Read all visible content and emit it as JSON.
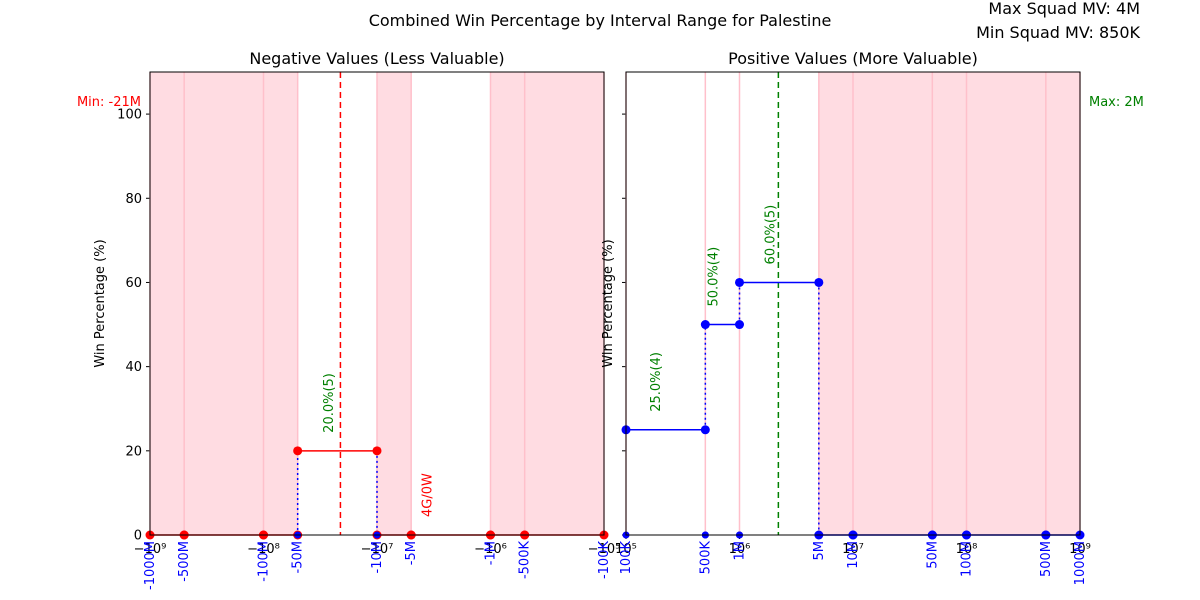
{
  "title": "Combined Win Percentage by Interval Range for Palestine",
  "info": {
    "max_squad_mv": "Max Squad MV: 4M",
    "min_squad_mv": "Min Squad MV: 850K"
  },
  "colors": {
    "negative": "#ff0000",
    "positive": "#0000ff",
    "annotation": "#008000",
    "shade": "#ffc0cb",
    "connector": "#0000ff"
  },
  "chart_data": [
    {
      "type": "line",
      "title": "Negative Values (Less Valuable)",
      "ylabel": "Win Percentage (%)",
      "x_scale": "symlog-negative",
      "xlim": [
        -1000000000,
        -100000
      ],
      "ylim": [
        0,
        110
      ],
      "yticks": [
        0,
        20,
        40,
        60,
        80,
        100
      ],
      "axis_ticks": [
        {
          "x": -1000000000,
          "label": "−10⁹"
        },
        {
          "x": -100000000,
          "label": "−10⁸"
        },
        {
          "x": -10000000,
          "label": "−10⁷"
        },
        {
          "x": -1000000,
          "label": "−10⁶"
        },
        {
          "x": -100000,
          "label": "−10⁵"
        }
      ],
      "interval_labels": [
        {
          "x": -1000000000,
          "label": "-1000M"
        },
        {
          "x": -500000000,
          "label": "-500M"
        },
        {
          "x": -100000000,
          "label": "-100M"
        },
        {
          "x": -50000000,
          "label": "-50M"
        },
        {
          "x": -10000000,
          "label": "-10M"
        },
        {
          "x": -5000000,
          "label": "-5M"
        },
        {
          "x": -1000000,
          "label": "-1M"
        },
        {
          "x": -500000,
          "label": "-500K"
        },
        {
          "x": -100000,
          "label": "-100K"
        }
      ],
      "shaded_ranges": [
        [
          -1000000000,
          -50000000
        ],
        [
          -10000000,
          -5000000
        ],
        [
          -1000000,
          -100000
        ]
      ],
      "marker_line": {
        "x": -21000000,
        "label": "Min: -21M",
        "color": "#ff0000"
      },
      "segments": [
        {
          "x_start": -1000000000,
          "x_end": -500000000,
          "y": 0
        },
        {
          "x_start": -500000000,
          "x_end": -100000000,
          "y": 0
        },
        {
          "x_start": -100000000,
          "x_end": -50000000,
          "y": 0
        },
        {
          "x_start": -50000000,
          "x_end": -10000000,
          "y": 20
        },
        {
          "x_start": -10000000,
          "x_end": -5000000,
          "y": 0
        },
        {
          "x_start": -5000000,
          "x_end": -1000000,
          "y": 0
        },
        {
          "x_start": -1000000,
          "x_end": -500000,
          "y": 0
        },
        {
          "x_start": -500000,
          "x_end": -100000,
          "y": 0
        }
      ],
      "annotations": [
        {
          "x": -22000000,
          "y": 20,
          "text": "20.0%(5)",
          "color": "#008000"
        },
        {
          "x": -3000000,
          "y": 0,
          "text": "4G/0W",
          "color": "#ff0000"
        }
      ]
    },
    {
      "type": "line",
      "title": "Positive Values (More Valuable)",
      "ylabel": "Win Percentage (%)",
      "x_scale": "log",
      "xlim": [
        100000,
        1000000000
      ],
      "ylim": [
        0,
        110
      ],
      "yticks": [
        0,
        20,
        40,
        60,
        80,
        100
      ],
      "axis_ticks": [
        {
          "x": 100000,
          "label": "10⁵"
        },
        {
          "x": 1000000,
          "label": "10⁶"
        },
        {
          "x": 10000000,
          "label": "10⁷"
        },
        {
          "x": 100000000,
          "label": "10⁸"
        },
        {
          "x": 1000000000,
          "label": "10⁹"
        }
      ],
      "interval_labels": [
        {
          "x": 100000,
          "label": "100K"
        },
        {
          "x": 500000,
          "label": "500K"
        },
        {
          "x": 1000000,
          "label": "1M"
        },
        {
          "x": 5000000,
          "label": "5M"
        },
        {
          "x": 10000000,
          "label": "10M"
        },
        {
          "x": 50000000,
          "label": "50M"
        },
        {
          "x": 100000000,
          "label": "100M"
        },
        {
          "x": 500000000,
          "label": "500M"
        },
        {
          "x": 1000000000,
          "label": "1000M"
        }
      ],
      "shaded_ranges": [
        [
          5000000,
          1000000000
        ]
      ],
      "marker_line": {
        "x": 2200000,
        "label": "Max: 2M",
        "color": "#008000"
      },
      "segments": [
        {
          "x_start": 100000,
          "x_end": 500000,
          "y": 25
        },
        {
          "x_start": 500000,
          "x_end": 1000000,
          "y": 50
        },
        {
          "x_start": 1000000,
          "x_end": 5000000,
          "y": 60
        },
        {
          "x_start": 5000000,
          "x_end": 10000000,
          "y": 0
        },
        {
          "x_start": 10000000,
          "x_end": 50000000,
          "y": 0
        },
        {
          "x_start": 50000000,
          "x_end": 100000000,
          "y": 0
        },
        {
          "x_start": 100000000,
          "x_end": 500000000,
          "y": 0
        },
        {
          "x_start": 500000000,
          "x_end": 1000000000,
          "y": 0
        }
      ],
      "annotations": [
        {
          "x": 220000,
          "y": 25,
          "text": "25.0%(4)",
          "color": "#008000"
        },
        {
          "x": 710000,
          "y": 50,
          "text": "50.0%(4)",
          "color": "#008000"
        },
        {
          "x": 2240000,
          "y": 60,
          "text": "60.0%(5)",
          "color": "#008000"
        }
      ]
    }
  ]
}
